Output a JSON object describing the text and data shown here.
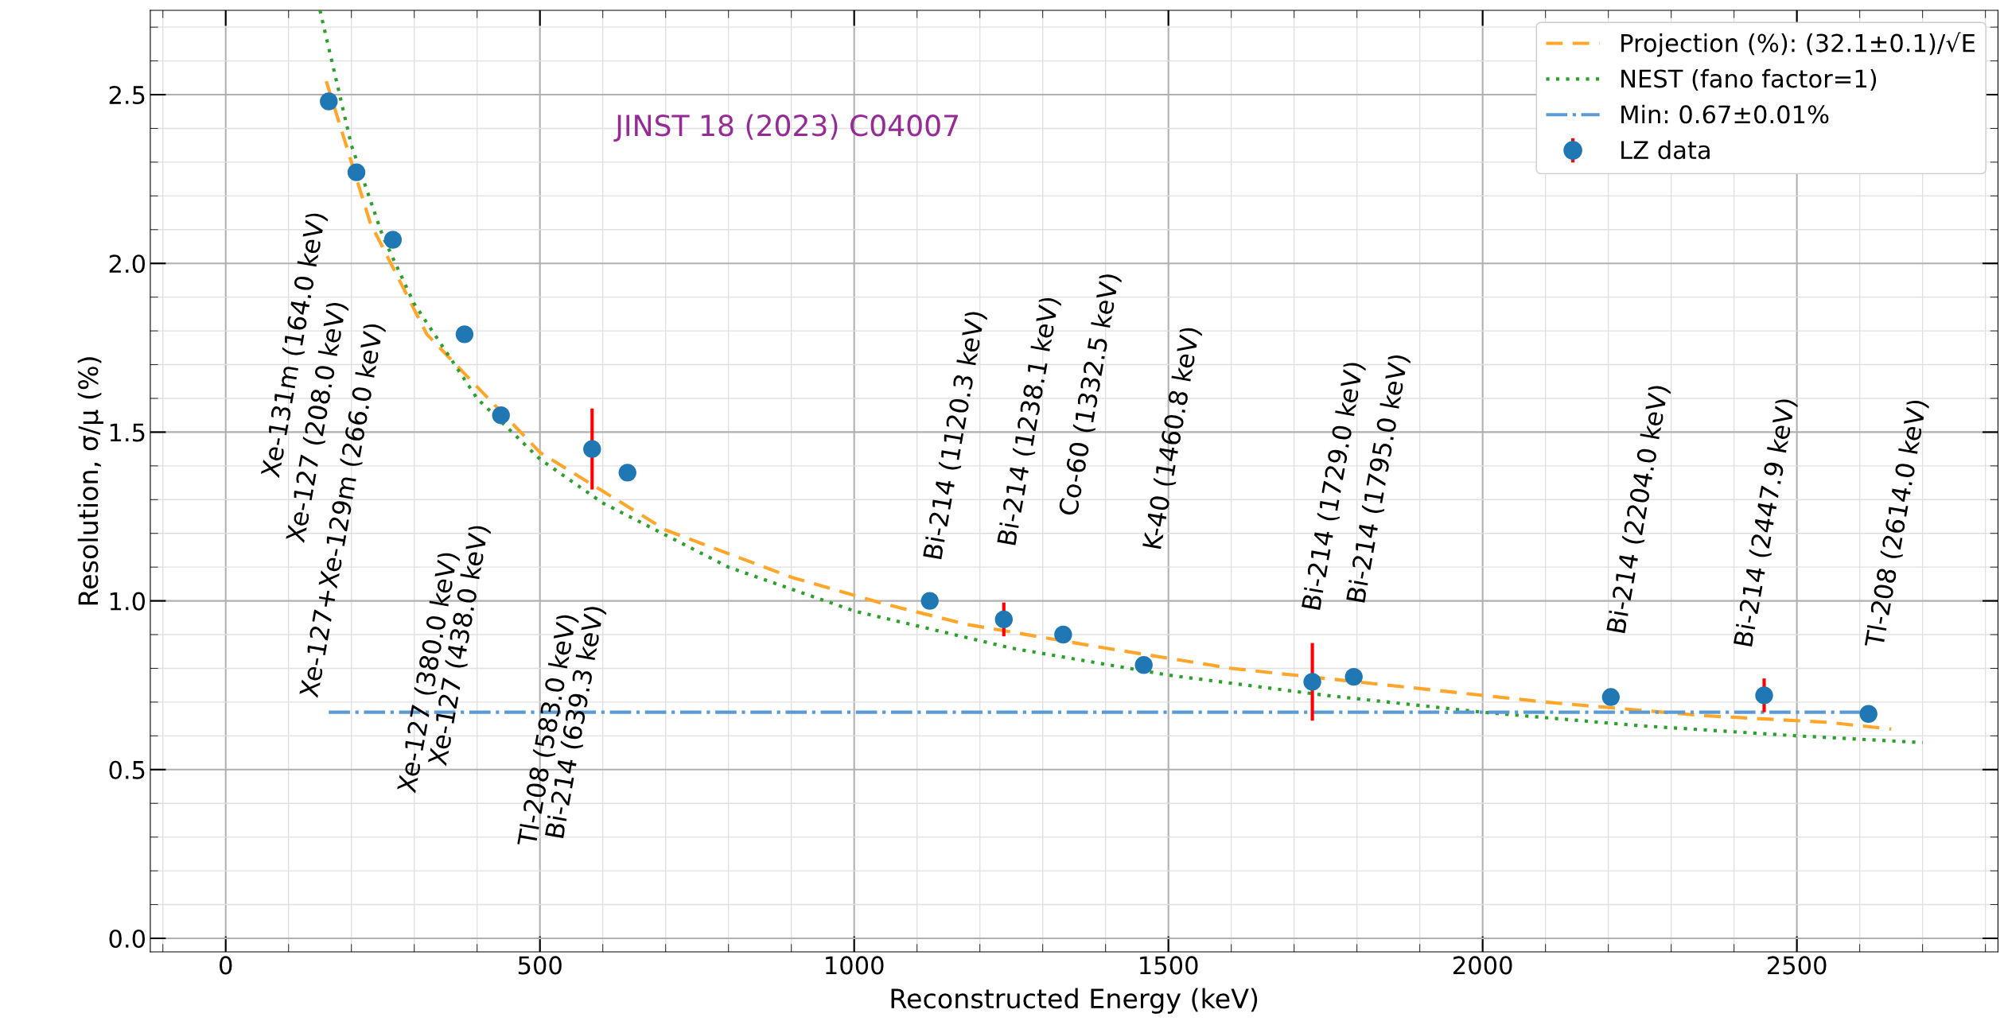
{
  "chart_data": {
    "type": "scatter",
    "xlabel": "Reconstructed Energy (keV)",
    "ylabel": "Resolution, σ/μ (%)",
    "xlim": [
      -120,
      2820
    ],
    "ylim": [
      -0.04,
      2.75
    ],
    "xticks": [
      0,
      500,
      1000,
      1500,
      2000,
      2500
    ],
    "yticks": [
      {
        "value": 0,
        "label": "0.0"
      },
      {
        "value": 0.5,
        "label": "0.5"
      },
      {
        "value": 1,
        "label": "1.0"
      },
      {
        "value": 1.5,
        "label": "1.5"
      },
      {
        "value": 2,
        "label": "2.0"
      },
      {
        "value": 2.5,
        "label": "2.5"
      }
    ],
    "grid": true,
    "legend": "top right",
    "series": [
      {
        "name": "Projection (%): (32.1±0.1)/√E",
        "type": "line",
        "line_style": "dashed",
        "color": "#ffa62b",
        "x": [
          160,
          230,
          320,
          500,
          700,
          900,
          1050,
          1180,
          1400,
          1600,
          1900,
          2100,
          2350,
          2550,
          2650
        ],
        "values": [
          2.54,
          2.12,
          1.79,
          1.44,
          1.21,
          1.07,
          0.99,
          0.93,
          0.86,
          0.8,
          0.74,
          0.7,
          0.66,
          0.64,
          0.62
        ]
      },
      {
        "name": "NEST (fano factor=1)",
        "type": "line",
        "line_style": "dotted",
        "color": "#2ca02c",
        "x": [
          150,
          200,
          250,
          300,
          400,
          500,
          600,
          800,
          1000,
          1250,
          1500,
          1750,
          2000,
          2250,
          2500,
          2700
        ],
        "values": [
          2.75,
          2.35,
          2.08,
          1.88,
          1.6,
          1.42,
          1.29,
          1.1,
          0.97,
          0.86,
          0.78,
          0.72,
          0.67,
          0.63,
          0.6,
          0.58
        ]
      },
      {
        "name": "Min: 0.67±0.01%",
        "type": "line",
        "line_style": "dashdot",
        "color": "#5b9bd5",
        "x": [
          164,
          2614
        ],
        "values": [
          0.67,
          0.67
        ]
      },
      {
        "name": "LZ data",
        "marker": "circle",
        "color": "#1f77b4",
        "x": [
          164,
          208,
          266,
          380,
          438,
          583,
          639.3,
          1120.3,
          1238.1,
          1332.5,
          1460.8,
          1729,
          1795,
          2204,
          2447.9,
          2614
        ],
        "values": [
          2.48,
          2.27,
          2.07,
          1.79,
          1.55,
          1.45,
          1.38,
          1.0,
          0.945,
          0.9,
          0.81,
          0.76,
          0.775,
          0.715,
          0.72,
          0.665
        ],
        "errors": [
          null,
          null,
          null,
          null,
          null,
          0.12,
          null,
          null,
          0.05,
          null,
          null,
          0.115,
          null,
          null,
          0.05,
          null
        ]
      }
    ],
    "annotations": [
      "JINST 18 (2023) C04007",
      "Xe-131m (164.0 keV)",
      "Xe-127 (208.0 keV)",
      "Xe-127+Xe-129m (266.0 keV)",
      "Xe-127 (380.0 keV)",
      "Xe-127 (438.0 keV)",
      "Tl-208 (583.0 keV)",
      "Bi-214 (639.3 keV)",
      "Bi-214 (1120.3 keV)",
      "Bi-214 (1238.1 keV)",
      "Co-60 (1332.5 keV)",
      "K-40 (1460.8 keV)",
      "Bi-214 (1729.0 keV)",
      "Bi-214 (1795.0 keV)",
      "Bi-214 (2204.0 keV)",
      "Bi-214 (2447.9 keV)",
      "Tl-208 (2614.0 keV)"
    ]
  }
}
